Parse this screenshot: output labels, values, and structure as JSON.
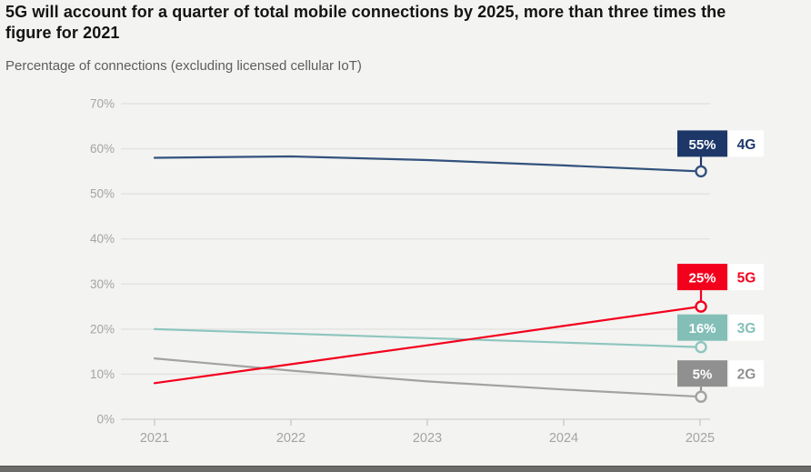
{
  "header": {
    "title": "5G will account for a quarter of total mobile connections by 2025, more than three times the figure for 2021",
    "subtitle": "Percentage of connections (excluding licensed cellular IoT)"
  },
  "chart_data": {
    "type": "line",
    "x": [
      2021,
      2022,
      2023,
      2024,
      2025
    ],
    "series": [
      {
        "name": "4G",
        "values": [
          58,
          58.3,
          57.5,
          56.3,
          55
        ],
        "end_label": "55%",
        "color": "#1d3868",
        "line_color": "#33527d"
      },
      {
        "name": "5G",
        "values": [
          8,
          12.2,
          16.4,
          20.7,
          25
        ],
        "end_label": "25%",
        "color": "#f3001d",
        "line_color": "#f3001d"
      },
      {
        "name": "3G",
        "values": [
          20,
          19,
          18,
          17,
          16
        ],
        "end_label": "16%",
        "color": "#83bfb7",
        "line_color": "#8ec6be"
      },
      {
        "name": "2G",
        "values": [
          13.5,
          10.8,
          8.4,
          6.6,
          5
        ],
        "end_label": "5%",
        "color": "#909090",
        "line_color": "#a2a2a2"
      }
    ],
    "title": "5G will account for a quarter of total mobile connections by 2025, more than three times the figure for 2021",
    "subtitle": "Percentage of connections (excluding licensed cellular IoT)",
    "xlabel": "",
    "ylabel": "",
    "ylim": [
      0,
      70
    ],
    "yticks": [
      "0%",
      "10%",
      "20%",
      "30%",
      "40%",
      "50%",
      "60%",
      "70%"
    ],
    "grid": true,
    "legend_position": "right-end-labels",
    "colors": {
      "background": "#f3f3f1",
      "gridline": "#e2e2e0",
      "zero_line": "#d6d6d4",
      "tick": "#c9c9c7",
      "axis_text": "#a4a4a2",
      "label_tag_background": "#ffffff"
    }
  }
}
